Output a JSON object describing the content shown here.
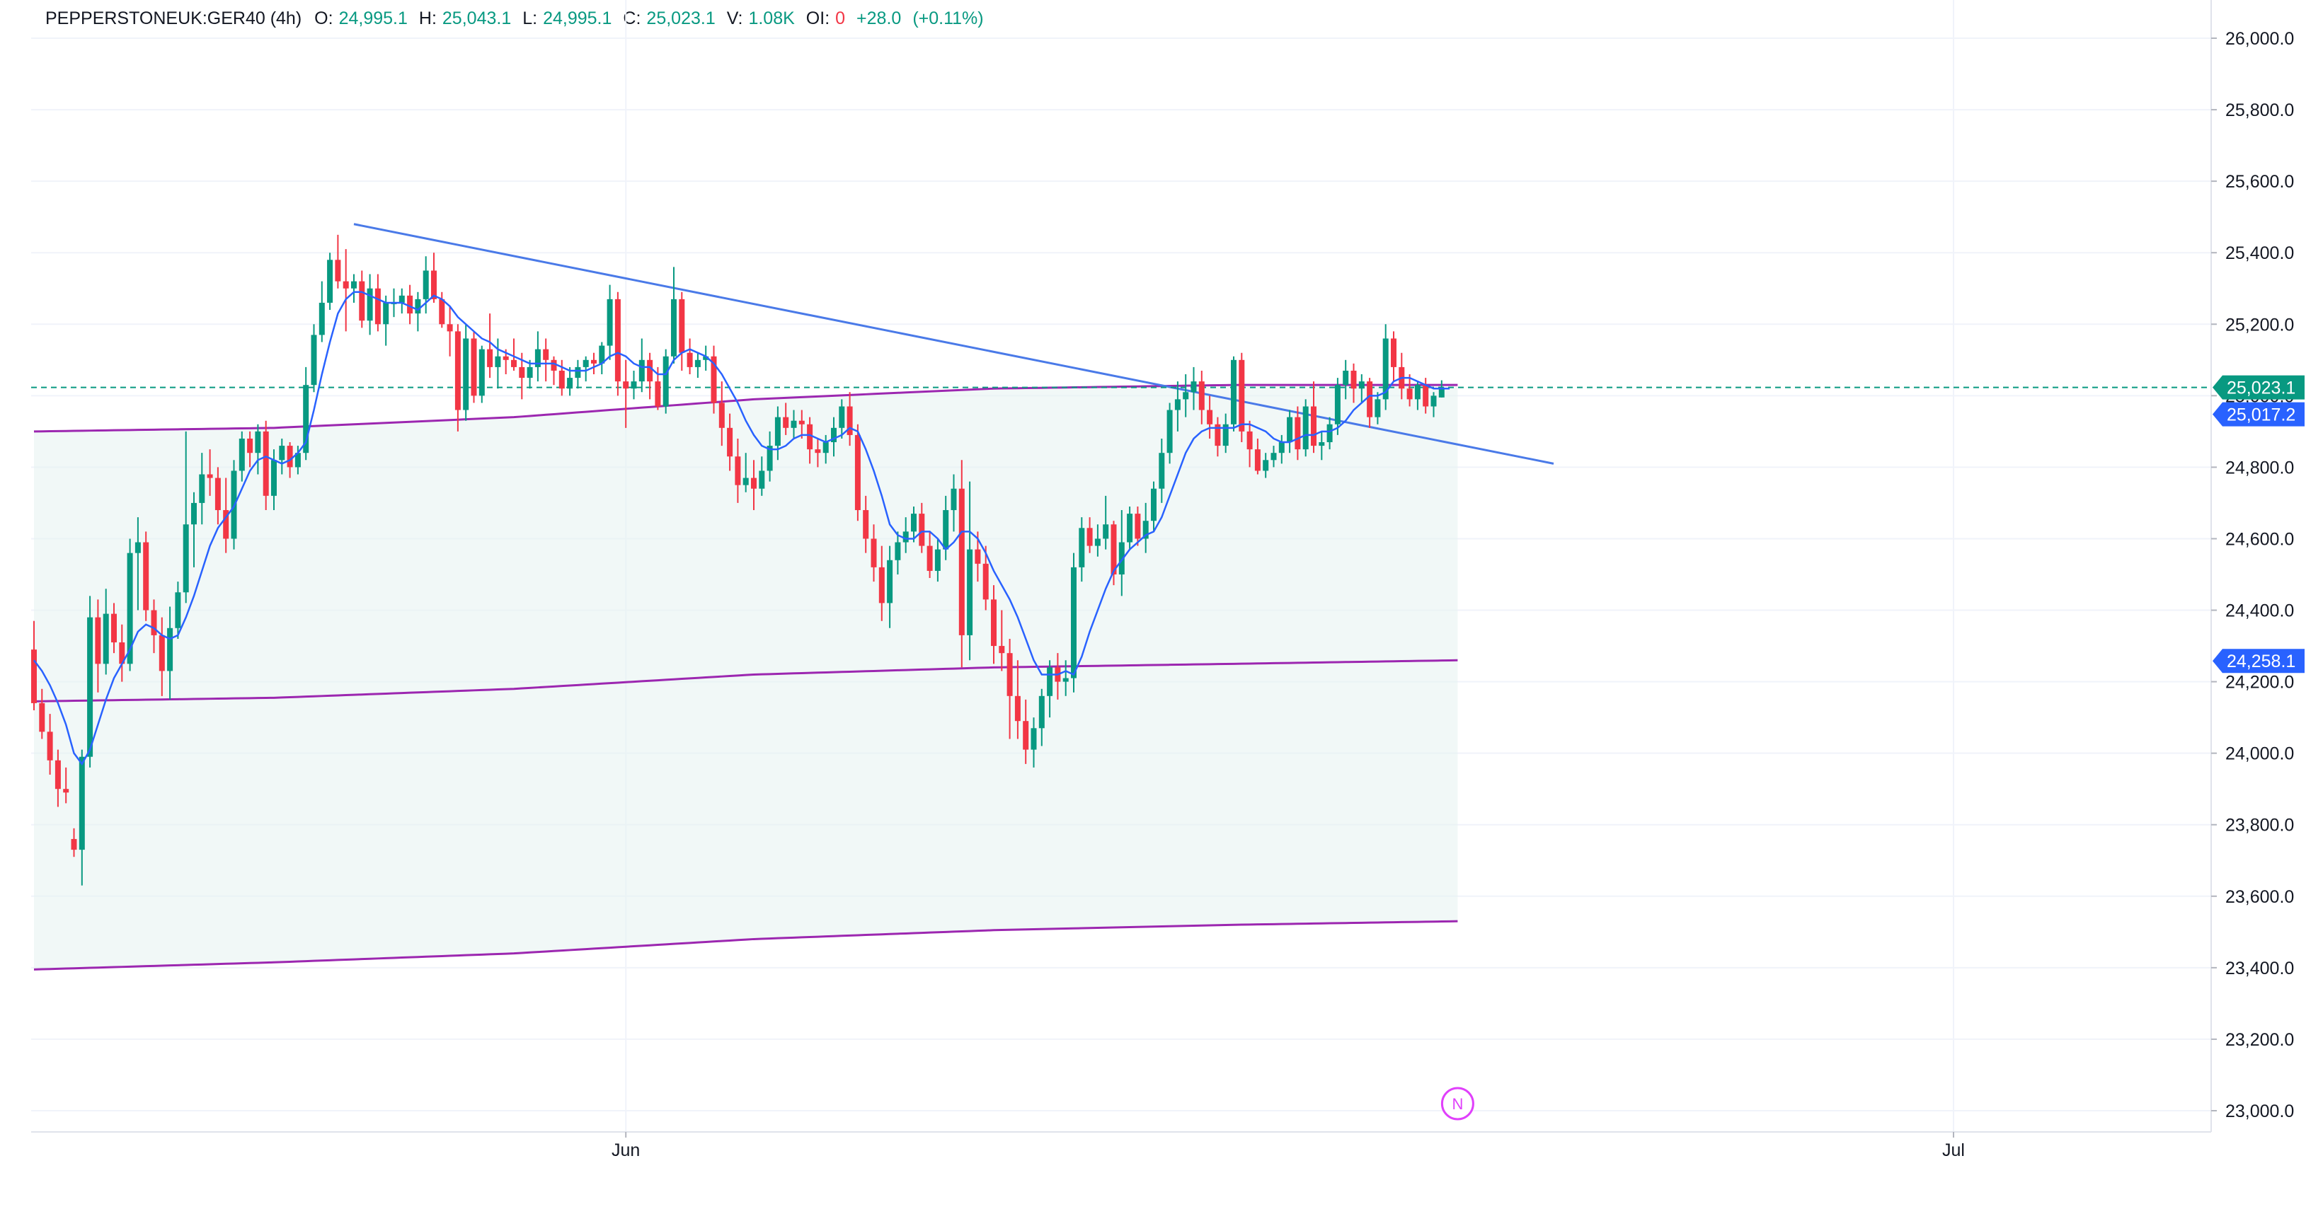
{
  "legend": {
    "symbol": "PEPPERSTONEUK:GER40 (4h)",
    "o_label": "O:",
    "o": "24,995.1",
    "h_label": "H:",
    "h": "25,043.1",
    "l_label": "L:",
    "l": "24,995.1",
    "c_label": "C:",
    "c": "25,023.1",
    "v_label": "V:",
    "v": "1.08K",
    "oi_label": "OI:",
    "oi": "0",
    "change": "+28.0",
    "change_pct": "(+0.11%)"
  },
  "colors": {
    "up": "#089981",
    "down": "#f23645",
    "ma": "#2962ff",
    "envelope": "#9c27b0",
    "trendline": "#4a7ae8",
    "grid": "#f0f3fa",
    "axis_text": "#131722",
    "band_fill": "#e6f2f0",
    "price_line": "#089981",
    "marker": "#e040fb"
  },
  "chart_data": {
    "type": "candlestick",
    "title": "",
    "ylim": [
      22950,
      26050
    ],
    "y_ticks": [
      23000,
      23200,
      23400,
      23600,
      23800,
      24000,
      24200,
      24400,
      24600,
      24800,
      25000,
      25200,
      25400,
      25600,
      25800,
      26000
    ],
    "y_tick_labels": [
      "23,000.0",
      "23,200.0",
      "23,400.0",
      "23,600.0",
      "23,800.0",
      "24,000.0",
      "24,200.0",
      "24,400.0",
      "24,600.0",
      "24,800.0",
      "25,000.0",
      "25,200.0",
      "25,400.0",
      "25,600.0",
      "25,800.0",
      "26,000.0"
    ],
    "x_labels": [
      "Jun",
      "Jul"
    ],
    "x_label_bar_index": [
      74,
      240
    ],
    "grid": true,
    "candles": [
      [
        24290,
        24370,
        24120,
        24140
      ],
      [
        24140,
        24180,
        24040,
        24060
      ],
      [
        24060,
        24110,
        23940,
        23980
      ],
      [
        23980,
        24010,
        23850,
        23900
      ],
      [
        23900,
        23960,
        23860,
        23890
      ],
      [
        23760,
        23790,
        23710,
        23730
      ],
      [
        23730,
        24010,
        23630,
        23990
      ],
      [
        23990,
        24440,
        23960,
        24380
      ],
      [
        24380,
        24430,
        24170,
        24250
      ],
      [
        24250,
        24460,
        24220,
        24390
      ],
      [
        24390,
        24420,
        24280,
        24310
      ],
      [
        24310,
        24360,
        24200,
        24250
      ],
      [
        24250,
        24600,
        24230,
        24560
      ],
      [
        24560,
        24660,
        24400,
        24590
      ],
      [
        24590,
        24620,
        24370,
        24400
      ],
      [
        24400,
        24430,
        24280,
        24330
      ],
      [
        24330,
        24380,
        24160,
        24230
      ],
      [
        24230,
        24410,
        24150,
        24350
      ],
      [
        24350,
        24480,
        24320,
        24450
      ],
      [
        24450,
        24900,
        24420,
        24640
      ],
      [
        24640,
        24730,
        24520,
        24700
      ],
      [
        24700,
        24840,
        24640,
        24780
      ],
      [
        24780,
        24850,
        24720,
        24770
      ],
      [
        24770,
        24800,
        24640,
        24680
      ],
      [
        24680,
        24770,
        24560,
        24600
      ],
      [
        24600,
        24820,
        24570,
        24790
      ],
      [
        24790,
        24900,
        24760,
        24880
      ],
      [
        24880,
        24900,
        24800,
        24840
      ],
      [
        24840,
        24920,
        24780,
        24900
      ],
      [
        24900,
        24930,
        24680,
        24720
      ],
      [
        24720,
        24850,
        24680,
        24820
      ],
      [
        24820,
        24880,
        24780,
        24860
      ],
      [
        24860,
        24870,
        24770,
        24800
      ],
      [
        24800,
        24860,
        24780,
        24840
      ],
      [
        24840,
        25080,
        24820,
        25030
      ],
      [
        25030,
        25200,
        25010,
        25170
      ],
      [
        25170,
        25320,
        25150,
        25260
      ],
      [
        25260,
        25400,
        25240,
        25380
      ],
      [
        25380,
        25450,
        25300,
        25320
      ],
      [
        25320,
        25410,
        25180,
        25300
      ],
      [
        25300,
        25340,
        25260,
        25320
      ],
      [
        25320,
        25350,
        25190,
        25210
      ],
      [
        25210,
        25340,
        25170,
        25300
      ],
      [
        25300,
        25340,
        25180,
        25200
      ],
      [
        25200,
        25280,
        25140,
        25260
      ],
      [
        25260,
        25300,
        25220,
        25260
      ],
      [
        25260,
        25300,
        25230,
        25280
      ],
      [
        25280,
        25310,
        25200,
        25230
      ],
      [
        25230,
        25290,
        25180,
        25270
      ],
      [
        25270,
        25390,
        25230,
        25350
      ],
      [
        25350,
        25400,
        25260,
        25270
      ],
      [
        25270,
        25290,
        25190,
        25200
      ],
      [
        25200,
        25250,
        25110,
        25180
      ],
      [
        25180,
        25200,
        24900,
        24960
      ],
      [
        24960,
        25200,
        24930,
        25160
      ],
      [
        25160,
        25180,
        24980,
        25000
      ],
      [
        25000,
        25140,
        24980,
        25130
      ],
      [
        25130,
        25230,
        25050,
        25080
      ],
      [
        25080,
        25160,
        25020,
        25110
      ],
      [
        25110,
        25130,
        25060,
        25100
      ],
      [
        25100,
        25160,
        25070,
        25080
      ],
      [
        25080,
        25120,
        24990,
        25050
      ],
      [
        25050,
        25100,
        25020,
        25080
      ],
      [
        25080,
        25180,
        25040,
        25130
      ],
      [
        25130,
        25160,
        25040,
        25100
      ],
      [
        25100,
        25110,
        25030,
        25070
      ],
      [
        25070,
        25100,
        25000,
        25020
      ],
      [
        25020,
        25080,
        25000,
        25050
      ],
      [
        25050,
        25100,
        25020,
        25080
      ],
      [
        25080,
        25110,
        25040,
        25100
      ],
      [
        25100,
        25120,
        25060,
        25090
      ],
      [
        25090,
        25150,
        25060,
        25140
      ],
      [
        25140,
        25310,
        25100,
        25270
      ],
      [
        25270,
        25290,
        25000,
        25040
      ],
      [
        25040,
        25100,
        24910,
        25020
      ],
      [
        25020,
        25070,
        24990,
        25040
      ],
      [
        25040,
        25160,
        25010,
        25100
      ],
      [
        25100,
        25120,
        24990,
        25040
      ],
      [
        25040,
        25080,
        24960,
        24970
      ],
      [
        24970,
        25130,
        24950,
        25110
      ],
      [
        25110,
        25360,
        25090,
        25270
      ],
      [
        25270,
        25290,
        25070,
        25120
      ],
      [
        25120,
        25160,
        25060,
        25080
      ],
      [
        25080,
        25120,
        25050,
        25100
      ],
      [
        25100,
        25140,
        25070,
        25110
      ],
      [
        25110,
        25140,
        24950,
        24980
      ],
      [
        24980,
        25040,
        24860,
        24910
      ],
      [
        24910,
        24950,
        24790,
        24830
      ],
      [
        24830,
        24880,
        24700,
        24750
      ],
      [
        24750,
        24840,
        24730,
        24770
      ],
      [
        24770,
        24820,
        24680,
        24740
      ],
      [
        24740,
        24830,
        24720,
        24790
      ],
      [
        24790,
        24900,
        24760,
        24860
      ],
      [
        24860,
        24970,
        24820,
        24940
      ],
      [
        24940,
        24980,
        24890,
        24910
      ],
      [
        24910,
        24960,
        24880,
        24930
      ],
      [
        24930,
        24960,
        24880,
        24920
      ],
      [
        24920,
        24940,
        24810,
        24850
      ],
      [
        24850,
        24880,
        24800,
        24840
      ],
      [
        24840,
        24890,
        24810,
        24870
      ],
      [
        24870,
        24940,
        24830,
        24910
      ],
      [
        24910,
        24990,
        24880,
        24970
      ],
      [
        24970,
        25010,
        24860,
        24890
      ],
      [
        24890,
        24920,
        24650,
        24680
      ],
      [
        24680,
        24720,
        24560,
        24600
      ],
      [
        24600,
        24640,
        24480,
        24520
      ],
      [
        24520,
        24580,
        24370,
        24420
      ],
      [
        24420,
        24580,
        24350,
        24540
      ],
      [
        24540,
        24620,
        24500,
        24590
      ],
      [
        24590,
        24660,
        24560,
        24620
      ],
      [
        24620,
        24690,
        24590,
        24670
      ],
      [
        24670,
        24700,
        24560,
        24580
      ],
      [
        24580,
        24620,
        24490,
        24510
      ],
      [
        24510,
        24600,
        24480,
        24570
      ],
      [
        24570,
        24720,
        24540,
        24680
      ],
      [
        24680,
        24780,
        24620,
        24740
      ],
      [
        24740,
        24820,
        24240,
        24330
      ],
      [
        24330,
        24760,
        24260,
        24570
      ],
      [
        24570,
        24620,
        24480,
        24530
      ],
      [
        24530,
        24580,
        24400,
        24430
      ],
      [
        24430,
        24470,
        24250,
        24300
      ],
      [
        24300,
        24400,
        24230,
        24280
      ],
      [
        24280,
        24320,
        24040,
        24160
      ],
      [
        24160,
        24260,
        24040,
        24090
      ],
      [
        24090,
        24150,
        23970,
        24010
      ],
      [
        24010,
        24100,
        23960,
        24070
      ],
      [
        24070,
        24180,
        24020,
        24160
      ],
      [
        24160,
        24260,
        24100,
        24240
      ],
      [
        24240,
        24280,
        24150,
        24200
      ],
      [
        24200,
        24260,
        24160,
        24210
      ],
      [
        24210,
        24560,
        24170,
        24520
      ],
      [
        24520,
        24660,
        24480,
        24630
      ],
      [
        24630,
        24660,
        24560,
        24580
      ],
      [
        24580,
        24640,
        24550,
        24600
      ],
      [
        24600,
        24720,
        24570,
        24640
      ],
      [
        24640,
        24650,
        24470,
        24500
      ],
      [
        24500,
        24680,
        24440,
        24590
      ],
      [
        24590,
        24690,
        24570,
        24670
      ],
      [
        24670,
        24690,
        24580,
        24600
      ],
      [
        24600,
        24700,
        24560,
        24650
      ],
      [
        24650,
        24760,
        24620,
        24740
      ],
      [
        24740,
        24880,
        24700,
        24840
      ],
      [
        24840,
        24980,
        24810,
        24960
      ],
      [
        24960,
        25040,
        24900,
        24990
      ],
      [
        24990,
        25060,
        24940,
        25010
      ],
      [
        25010,
        25080,
        24960,
        25040
      ],
      [
        25040,
        25070,
        24920,
        24960
      ],
      [
        24960,
        25000,
        24880,
        24920
      ],
      [
        24920,
        24940,
        24830,
        24860
      ],
      [
        24860,
        24950,
        24840,
        24920
      ],
      [
        24920,
        25110,
        24900,
        25100
      ],
      [
        25100,
        25120,
        24870,
        24900
      ],
      [
        24900,
        24930,
        24800,
        24850
      ],
      [
        24850,
        24880,
        24780,
        24790
      ],
      [
        24790,
        24840,
        24770,
        24820
      ],
      [
        24820,
        24860,
        24800,
        24840
      ],
      [
        24840,
        24890,
        24810,
        24870
      ],
      [
        24870,
        24960,
        24840,
        24940
      ],
      [
        24940,
        24970,
        24820,
        24850
      ],
      [
        24850,
        24990,
        24830,
        24970
      ],
      [
        24970,
        25040,
        24840,
        24860
      ],
      [
        24860,
        24900,
        24820,
        24870
      ],
      [
        24870,
        24940,
        24850,
        24920
      ],
      [
        24920,
        25050,
        24890,
        25030
      ],
      [
        25030,
        25100,
        24990,
        25070
      ],
      [
        25070,
        25090,
        24980,
        25020
      ],
      [
        25020,
        25060,
        24980,
        25040
      ],
      [
        25040,
        25050,
        24910,
        24940
      ],
      [
        24940,
        25010,
        24920,
        24990
      ],
      [
        24990,
        25200,
        24960,
        25160
      ],
      [
        25160,
        25180,
        25040,
        25080
      ],
      [
        25080,
        25120,
        24990,
        25020
      ],
      [
        25020,
        25060,
        24970,
        24990
      ],
      [
        24990,
        25040,
        24960,
        25030
      ],
      [
        25030,
        25050,
        24950,
        24970
      ],
      [
        24970,
        25010,
        24940,
        25000
      ],
      [
        24995.1,
        25043.1,
        24995.1,
        25023.1
      ]
    ],
    "ma_line": [
      24260,
      24230,
      24190,
      24140,
      24080,
      24000,
      23970,
      24010,
      24080,
      24150,
      24210,
      24250,
      24290,
      24340,
      24360,
      24350,
      24330,
      24320,
      24330,
      24380,
      24440,
      24510,
      24580,
      24630,
      24660,
      24690,
      24740,
      24790,
      24820,
      24830,
      24820,
      24810,
      24820,
      24840,
      24870,
      24960,
      25060,
      25150,
      25230,
      25270,
      25290,
      25290,
      25280,
      25270,
      25260,
      25260,
      25260,
      25250,
      25240,
      25260,
      25280,
      25270,
      25250,
      25220,
      25200,
      25180,
      25160,
      25150,
      25130,
      25120,
      25110,
      25100,
      25090,
      25090,
      25090,
      25090,
      25080,
      25070,
      25070,
      25070,
      25080,
      25090,
      25110,
      25120,
      25110,
      25090,
      25080,
      25080,
      25060,
      25060,
      25100,
      25120,
      25130,
      25120,
      25110,
      25090,
      25060,
      25020,
      24980,
      24930,
      24890,
      24860,
      24850,
      24850,
      24860,
      24880,
      24890,
      24890,
      24880,
      24870,
      24880,
      24890,
      24910,
      24900,
      24850,
      24790,
      24720,
      24640,
      24610,
      24600,
      24600,
      24620,
      24620,
      24600,
      24570,
      24590,
      24620,
      24620,
      24600,
      24560,
      24510,
      24470,
      24430,
      24380,
      24320,
      24260,
      24220,
      24220,
      24220,
      24230,
      24220,
      24270,
      24340,
      24400,
      24460,
      24510,
      24540,
      24570,
      24590,
      24610,
      24620,
      24660,
      24720,
      24780,
      24840,
      24880,
      24900,
      24910,
      24910,
      24910,
      24910,
      24920,
      24920,
      24910,
      24900,
      24880,
      24870,
      24870,
      24880,
      24890,
      24890,
      24900,
      24900,
      24910,
      24930,
      24960,
      24980,
      25000,
      25000,
      25010,
      25040,
      25050,
      25050,
      25040,
      25030,
      25020,
      25020,
      25020
    ],
    "envelope_upper": [
      [
        0,
        24900
      ],
      [
        30,
        24910
      ],
      [
        60,
        24940
      ],
      [
        90,
        24990
      ],
      [
        120,
        25020
      ],
      [
        150,
        25030
      ],
      [
        178,
        25030
      ]
    ],
    "envelope_middle": [
      [
        0,
        24145
      ],
      [
        30,
        24155
      ],
      [
        60,
        24180
      ],
      [
        90,
        24220
      ],
      [
        120,
        24240
      ],
      [
        150,
        24250
      ],
      [
        178,
        24260
      ]
    ],
    "envelope_lower": [
      [
        0,
        23395
      ],
      [
        30,
        23415
      ],
      [
        60,
        23440
      ],
      [
        90,
        23480
      ],
      [
        120,
        23505
      ],
      [
        150,
        23520
      ],
      [
        178,
        23530
      ]
    ],
    "trendline": [
      [
        40,
        25480
      ],
      [
        190,
        24810
      ]
    ],
    "last_price": 25023.1,
    "price_tags": [
      {
        "value": 25023.1,
        "label": "25,023.1",
        "color": "#089981"
      },
      {
        "value": 25017.2,
        "label": "25,017.2",
        "color": "#2962ff"
      },
      {
        "value": 24258.1,
        "label": "24,258.1",
        "color": "#2962ff"
      }
    ],
    "marker": {
      "label": "N",
      "bar_index": 178
    }
  }
}
